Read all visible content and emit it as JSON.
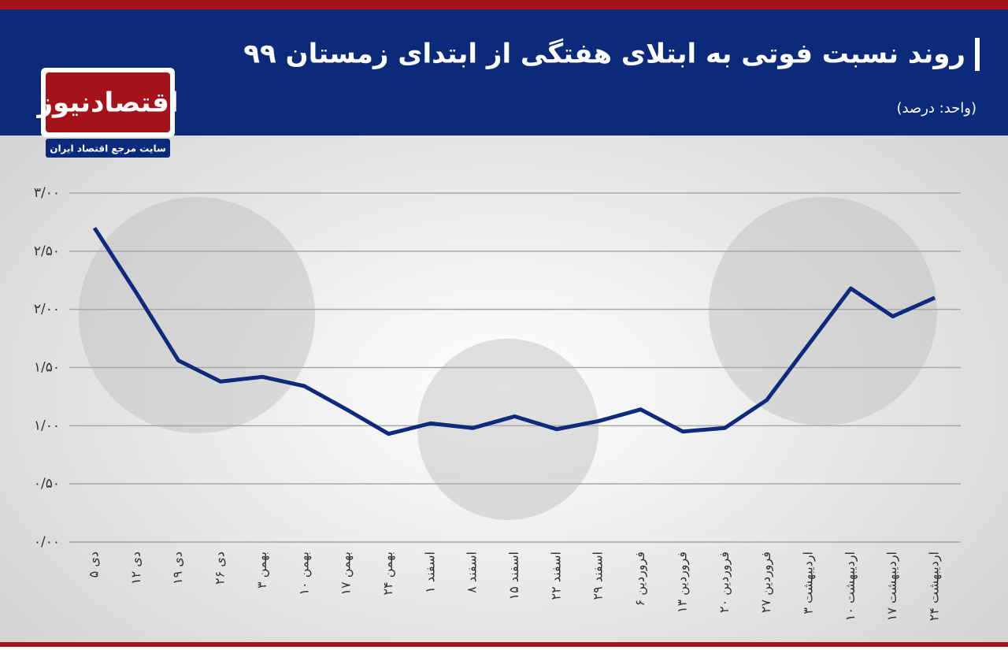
{
  "logo": {
    "name": "اقتصادنیوز",
    "tagline": "سایت مرجع اقتصاد ایران"
  },
  "chart_data": {
    "type": "line",
    "title": "روند نسبت فوتی به ابتلای هفتگی از ابتدای زمستان ۹۹",
    "subtitle": "(واحد: درصد)",
    "categories": [
      "۵ دی",
      "۱۲ دی",
      "۱۹ دی",
      "۲۶ دی",
      "۳ بهمن",
      "۱۰ بهمن",
      "۱۷ بهمن",
      "۲۴ بهمن",
      "۱ اسفند",
      "۸ اسفند",
      "۱۵ اسفند",
      "۲۲ اسفند",
      "۲۹ اسفند",
      "۶ فروردین",
      "۱۳ فروردین",
      "۲۰ فروردین",
      "۲۷ فروردین",
      "۳ اردیبهشت",
      "۱۰ اردیبهشت",
      "۱۷ اردیبهشت",
      "۲۴ اردیبهشت"
    ],
    "values": [
      2.7,
      2.14,
      1.56,
      1.38,
      1.42,
      1.34,
      1.14,
      0.93,
      1.02,
      0.98,
      1.08,
      0.97,
      1.04,
      1.14,
      0.95,
      0.98,
      1.22,
      1.7,
      2.18,
      1.94,
      2.1
    ],
    "color": "#0e2a7c",
    "ylim": [
      0,
      3
    ],
    "yticks": [
      {
        "value": 0,
        "label": "۰/۰۰"
      },
      {
        "value": 0.5,
        "label": "۰/۵۰"
      },
      {
        "value": 1,
        "label": "۱/۰۰"
      },
      {
        "value": 1.5,
        "label": "۱/۵۰"
      },
      {
        "value": 2,
        "label": "۲/۰۰"
      },
      {
        "value": 2.5,
        "label": "۲/۵۰"
      },
      {
        "value": 3,
        "label": "۳/۰۰"
      }
    ],
    "grid": true
  }
}
